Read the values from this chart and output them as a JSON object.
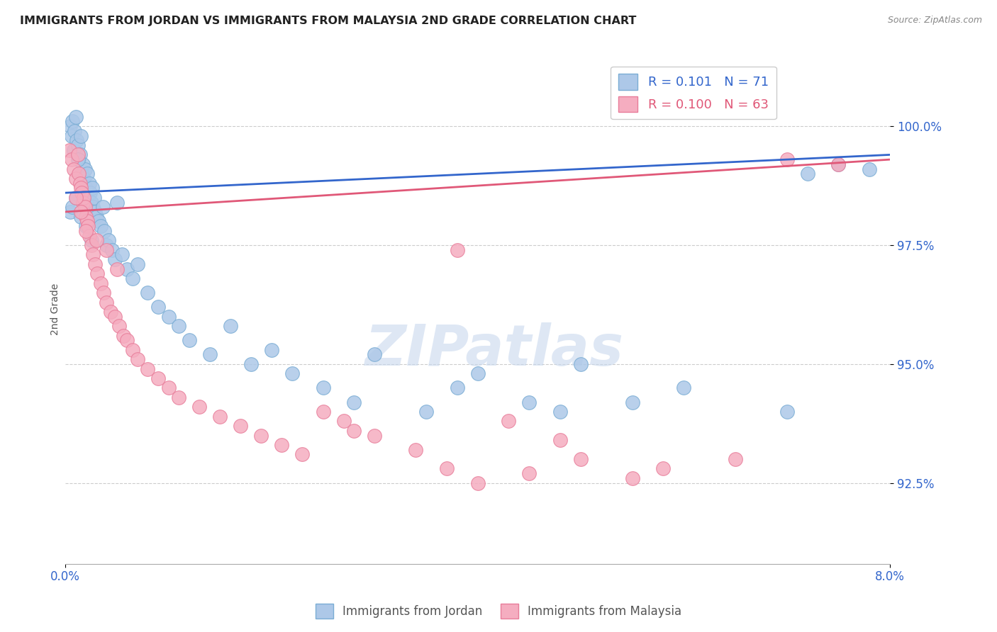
{
  "title": "IMMIGRANTS FROM JORDAN VS IMMIGRANTS FROM MALAYSIA 2ND GRADE CORRELATION CHART",
  "source": "Source: ZipAtlas.com",
  "ylabel": "2nd Grade",
  "yticks": [
    92.5,
    95.0,
    97.5,
    100.0
  ],
  "ytick_labels": [
    "92.5%",
    "95.0%",
    "97.5%",
    "100.0%"
  ],
  "xlim": [
    0.0,
    8.0
  ],
  "ylim": [
    90.8,
    101.5
  ],
  "jordan_color": "#adc8e8",
  "malaysia_color": "#f5adc0",
  "jordan_edge": "#7aadd4",
  "malaysia_edge": "#e87d9a",
  "trend_jordan_color": "#3366cc",
  "trend_malaysia_color": "#e05878",
  "jordan_R": 0.101,
  "jordan_N": 71,
  "malaysia_R": 0.1,
  "malaysia_N": 63,
  "legend_jordan": "Immigrants from Jordan",
  "legend_malaysia": "Immigrants from Malaysia",
  "watermark": "ZIPatlas",
  "jordan_x": [
    0.05,
    0.06,
    0.07,
    0.08,
    0.09,
    0.1,
    0.11,
    0.12,
    0.13,
    0.14,
    0.15,
    0.16,
    0.17,
    0.18,
    0.19,
    0.2,
    0.21,
    0.22,
    0.23,
    0.24,
    0.25,
    0.26,
    0.27,
    0.28,
    0.29,
    0.3,
    0.32,
    0.34,
    0.36,
    0.38,
    0.4,
    0.42,
    0.45,
    0.48,
    0.5,
    0.55,
    0.6,
    0.65,
    0.7,
    0.8,
    0.9,
    1.0,
    1.1,
    1.2,
    1.4,
    1.6,
    1.8,
    2.0,
    2.2,
    2.5,
    2.8,
    3.0,
    3.5,
    3.8,
    4.0,
    4.5,
    4.8,
    5.0,
    5.5,
    6.0,
    7.0,
    7.2,
    7.5,
    7.8,
    0.05,
    0.07,
    0.1,
    0.15,
    0.2,
    0.12,
    0.25
  ],
  "jordan_y": [
    100.0,
    99.8,
    100.1,
    99.5,
    99.9,
    100.2,
    99.7,
    99.6,
    99.3,
    99.4,
    99.8,
    99.0,
    99.2,
    98.9,
    99.1,
    98.7,
    99.0,
    98.5,
    98.8,
    98.6,
    98.4,
    98.7,
    98.3,
    98.5,
    98.2,
    98.1,
    98.0,
    97.9,
    98.3,
    97.8,
    97.5,
    97.6,
    97.4,
    97.2,
    98.4,
    97.3,
    97.0,
    96.8,
    97.1,
    96.5,
    96.2,
    96.0,
    95.8,
    95.5,
    95.2,
    95.8,
    95.0,
    95.3,
    94.8,
    94.5,
    94.2,
    95.2,
    94.0,
    94.5,
    94.8,
    94.2,
    94.0,
    95.0,
    94.2,
    94.5,
    94.0,
    99.0,
    99.2,
    99.1,
    98.2,
    98.3,
    98.5,
    98.1,
    97.9,
    99.3,
    97.6
  ],
  "malaysia_x": [
    0.04,
    0.06,
    0.08,
    0.1,
    0.12,
    0.13,
    0.14,
    0.15,
    0.16,
    0.17,
    0.18,
    0.19,
    0.2,
    0.21,
    0.22,
    0.23,
    0.25,
    0.27,
    0.29,
    0.31,
    0.34,
    0.37,
    0.4,
    0.44,
    0.48,
    0.52,
    0.56,
    0.6,
    0.65,
    0.7,
    0.8,
    0.9,
    1.0,
    1.1,
    1.3,
    1.5,
    1.7,
    1.9,
    2.1,
    2.3,
    2.5,
    2.7,
    3.0,
    3.4,
    3.7,
    4.0,
    4.5,
    5.0,
    5.5,
    4.3,
    0.1,
    0.15,
    0.2,
    0.3,
    0.4,
    0.5,
    2.8,
    3.8,
    4.8,
    5.8,
    6.5,
    7.0,
    7.5
  ],
  "malaysia_y": [
    99.5,
    99.3,
    99.1,
    98.9,
    99.4,
    99.0,
    98.8,
    98.7,
    98.6,
    98.4,
    98.5,
    98.3,
    98.1,
    98.0,
    97.9,
    97.7,
    97.5,
    97.3,
    97.1,
    96.9,
    96.7,
    96.5,
    96.3,
    96.1,
    96.0,
    95.8,
    95.6,
    95.5,
    95.3,
    95.1,
    94.9,
    94.7,
    94.5,
    94.3,
    94.1,
    93.9,
    93.7,
    93.5,
    93.3,
    93.1,
    94.0,
    93.8,
    93.5,
    93.2,
    92.8,
    92.5,
    92.7,
    93.0,
    92.6,
    93.8,
    98.5,
    98.2,
    97.8,
    97.6,
    97.4,
    97.0,
    93.6,
    97.4,
    93.4,
    92.8,
    93.0,
    99.3,
    99.2
  ]
}
